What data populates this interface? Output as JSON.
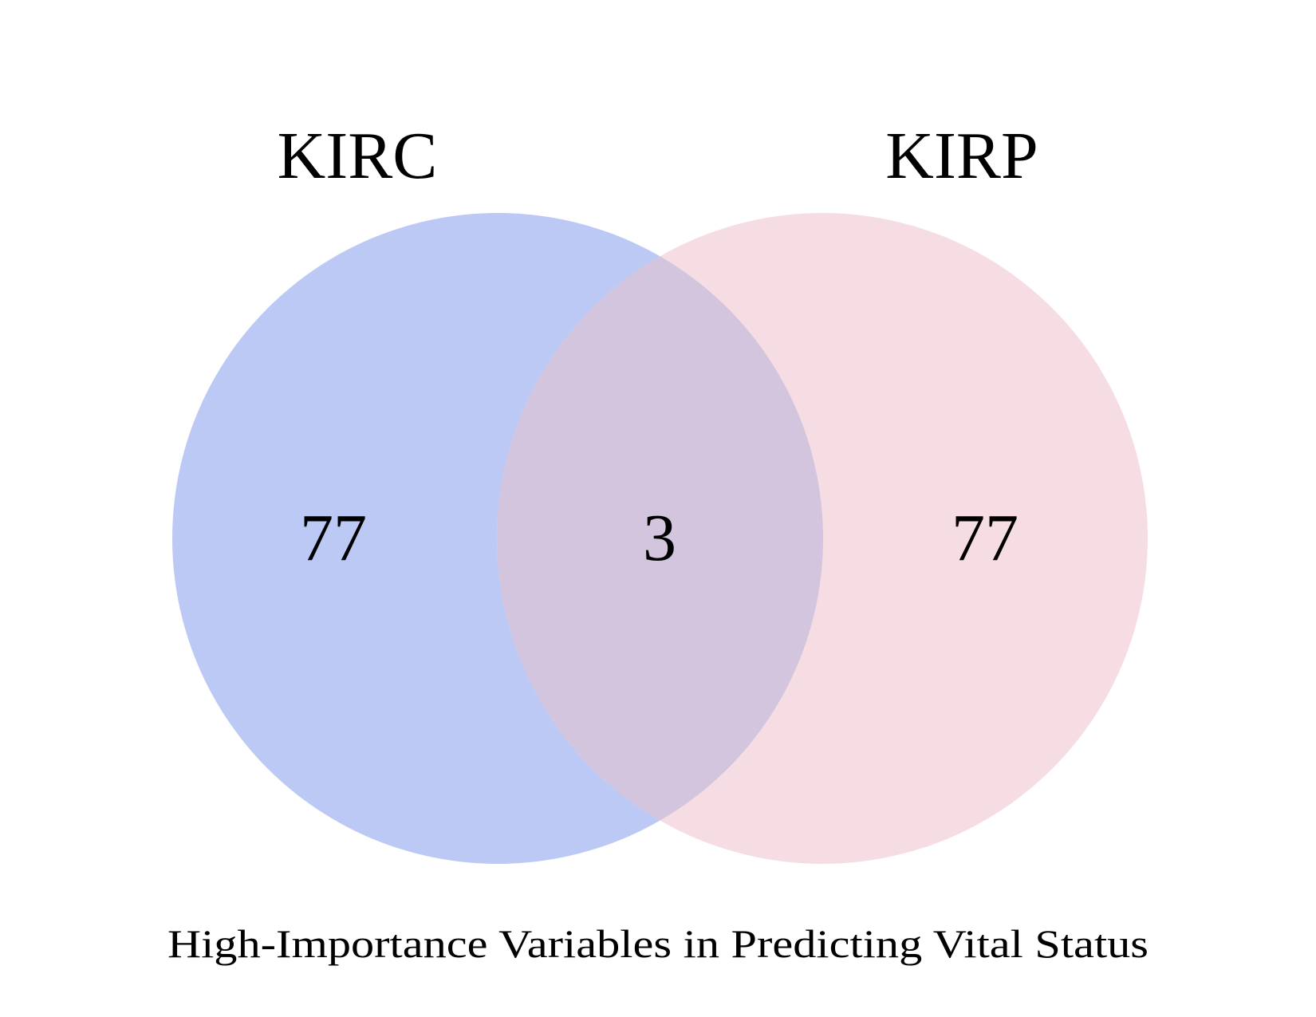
{
  "diagram": {
    "type": "venn",
    "sets": [
      {
        "label": "KIRC",
        "color": "#bbc9f4"
      },
      {
        "label": "KIRP",
        "color": "#f5dde3"
      }
    ],
    "overlap_color": "#d4c5de",
    "regions": {
      "left_only": "77",
      "intersection": "3",
      "right_only": "77"
    },
    "caption": "High-Importance Variables in Predicting Vital Status"
  }
}
